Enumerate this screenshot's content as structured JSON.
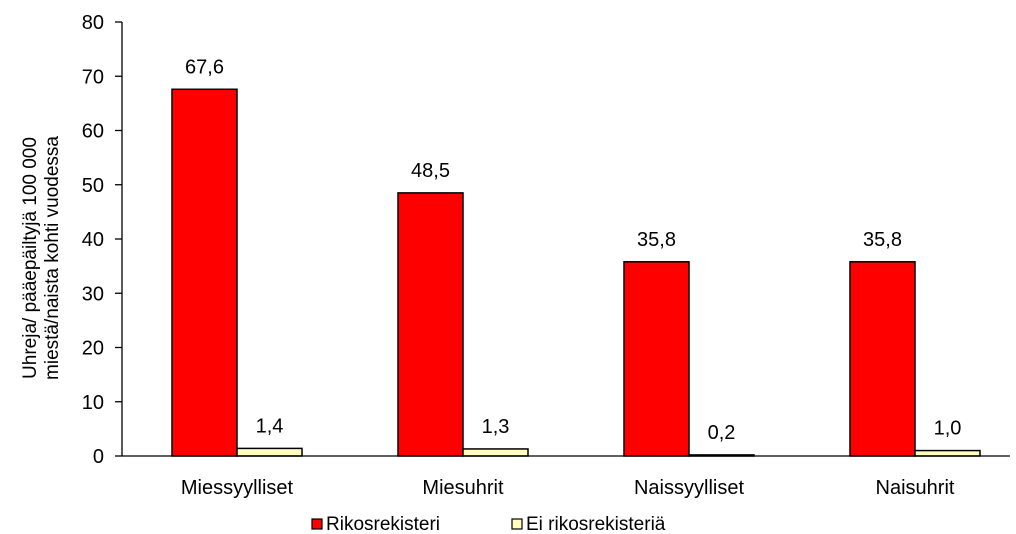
{
  "chart_data": {
    "type": "bar",
    "categories": [
      "Miessyylliset",
      "Miesuhrit",
      "Naissyylliset",
      "Naisuhrit"
    ],
    "series": [
      {
        "name": "Rikosrekisteri",
        "values": [
          67.6,
          48.5,
          35.8,
          35.8
        ],
        "labels": [
          "67,6",
          "48,5",
          "35,8",
          "35,8"
        ],
        "color": "#ff0000"
      },
      {
        "name": "Ei rikosrekisteriä",
        "values": [
          1.4,
          1.3,
          0.2,
          1.0
        ],
        "labels": [
          "1,4",
          "1,3",
          "0,2",
          "1,0"
        ],
        "color": "#ffffc0"
      }
    ],
    "ylabel": [
      "Uhreja/ pääepäiltyjä 100 000",
      "miestä/naista kohti vuodessa"
    ],
    "xlabel": "",
    "ylim": [
      0,
      80
    ],
    "yticks": [
      0,
      10,
      20,
      30,
      40,
      50,
      60,
      70,
      80
    ],
    "grid": false,
    "legend": "bottom"
  }
}
